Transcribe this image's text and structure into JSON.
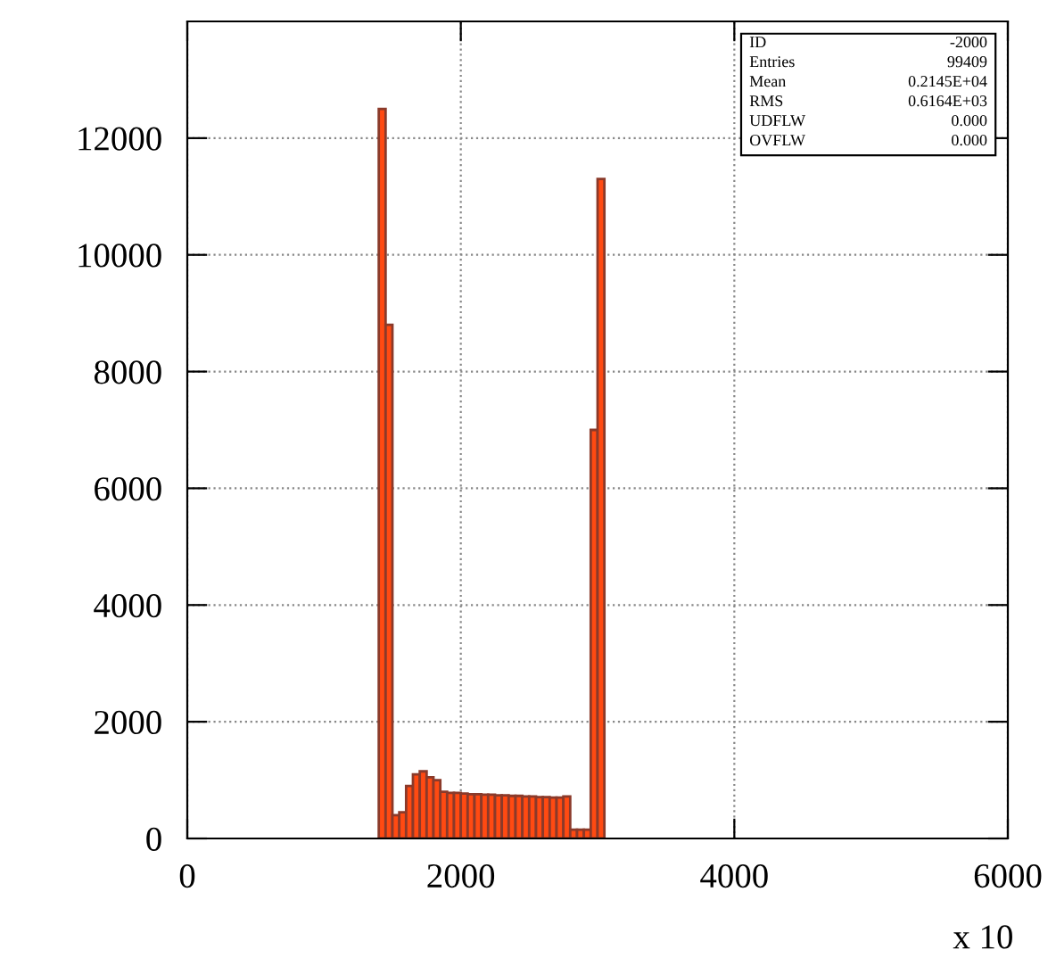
{
  "chart_data": {
    "type": "histogram",
    "xlabel": "x 10",
    "bins": [
      1400,
      1450,
      1500,
      1550,
      1600,
      1650,
      1700,
      1750,
      1800,
      1850,
      1900,
      1950,
      2000,
      2050,
      2100,
      2150,
      2200,
      2250,
      2300,
      2350,
      2400,
      2450,
      2500,
      2550,
      2600,
      2650,
      2700,
      2750,
      2800,
      2850,
      2900,
      2950,
      3000,
      3050
    ],
    "values": [
      12500,
      8800,
      400,
      450,
      900,
      1100,
      1150,
      1050,
      1000,
      800,
      780,
      780,
      770,
      760,
      760,
      750,
      750,
      740,
      740,
      730,
      730,
      720,
      720,
      710,
      710,
      700,
      700,
      720,
      150,
      150,
      150,
      7000,
      11300
    ],
    "color": "#ff4a12",
    "xlim": [
      0,
      6000
    ],
    "ylim": [
      0,
      14000
    ],
    "xticks": [
      0,
      2000,
      4000,
      6000
    ],
    "yticks": [
      0,
      2000,
      4000,
      6000,
      8000,
      10000,
      12000
    ],
    "grid": true,
    "annotations": [
      "ID",
      "-2000",
      "Entries",
      "99409",
      "Mean",
      "0.2145E+04",
      "RMS",
      "0.6164E+03",
      "UDFLW",
      "0.000",
      "OVFLW",
      "0.000"
    ]
  }
}
